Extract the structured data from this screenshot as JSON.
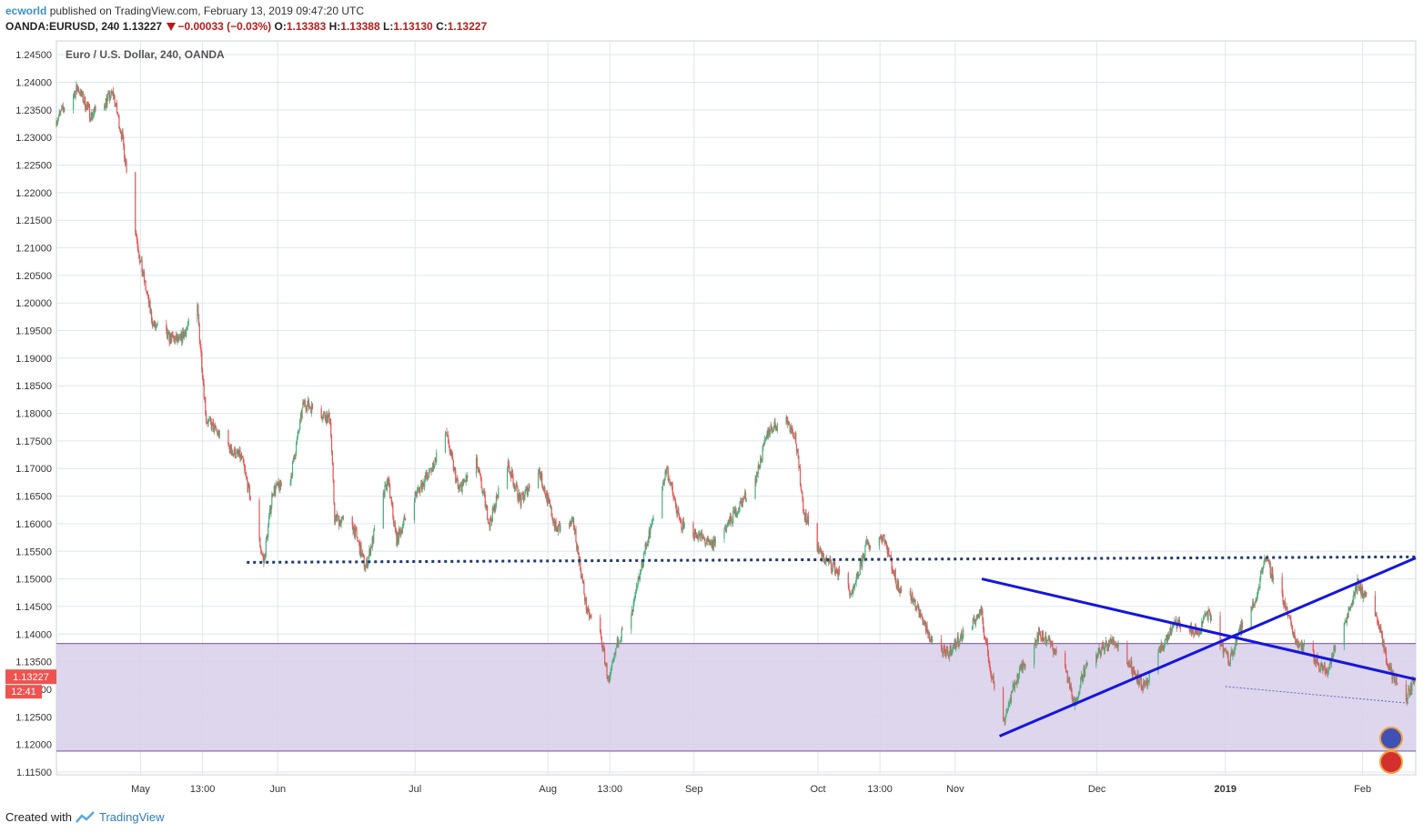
{
  "header": {
    "author": "ecworld",
    "published_text": "published on TradingView.com, February 13, 2019 09:47:20 UTC",
    "symbol": "OANDA:EURUSD, 240",
    "last": "1.13227",
    "change": "−0.00033 (−0.03%)",
    "o_label": "O:",
    "o_value": "1.13383",
    "h_label": "H:",
    "h_value": "1.13388",
    "l_label": "L:",
    "l_value": "1.13130",
    "c_label": "C:",
    "c_value": "1.13227"
  },
  "footer": {
    "created_with": "Created with",
    "brand": "TradingView"
  },
  "colors": {
    "up": "#4caf7d",
    "down": "#e05858",
    "trendline": "#1515e0",
    "support_dotted": "#1f3a6e",
    "zone_fill": "#d9d2ea",
    "zone_border": "#8e6bb8",
    "price_tag": "#ef5350",
    "grid": "#dde6ef"
  },
  "chart_data": {
    "type": "candlestick",
    "title": "Euro / U.S. Dollar, 240, OANDA",
    "y_range": [
      1.1145,
      1.2475
    ],
    "y_ticks": [
      "1.24500",
      "1.24000",
      "1.23500",
      "1.23000",
      "1.22500",
      "1.22000",
      "1.21500",
      "1.21000",
      "1.20500",
      "1.20000",
      "1.19500",
      "1.19000",
      "1.18500",
      "1.18000",
      "1.17500",
      "1.17000",
      "1.16500",
      "1.16000",
      "1.15500",
      "1.15000",
      "1.14500",
      "1.14000",
      "1.13500",
      "1.13000",
      "1.12500",
      "1.12000",
      "1.11500"
    ],
    "x_ticks": [
      "May",
      "13:00",
      "Jun",
      "Jul",
      "Aug",
      "13:00",
      "Sep",
      "Oct",
      "13:00",
      "Nov",
      "Dec",
      "2019",
      "Feb"
    ],
    "x_range": [
      "2018-04-12",
      "2019-02-13"
    ],
    "last_price_tag": "1.13227",
    "countdown_tag": "12:41",
    "price_path": [
      [
        "2018-04-12",
        1.233
      ],
      [
        "2018-04-17",
        1.239
      ],
      [
        "2018-04-20",
        1.234
      ],
      [
        "2018-04-25",
        1.238
      ],
      [
        "2018-04-27",
        1.23
      ],
      [
        "2018-05-01",
        1.208
      ],
      [
        "2018-05-04",
        1.196
      ],
      [
        "2018-05-07",
        1.194
      ],
      [
        "2018-05-10",
        1.193
      ],
      [
        "2018-05-14",
        1.199
      ],
      [
        "2018-05-16",
        1.179
      ],
      [
        "2018-05-18",
        1.177
      ],
      [
        "2018-05-22",
        1.173
      ],
      [
        "2018-05-24",
        1.172
      ],
      [
        "2018-05-29",
        1.153
      ],
      [
        "2018-05-31",
        1.166
      ],
      [
        "2018-06-04",
        1.168
      ],
      [
        "2018-06-07",
        1.182
      ],
      [
        "2018-06-13",
        1.179
      ],
      [
        "2018-06-14",
        1.161
      ],
      [
        "2018-06-18",
        1.16
      ],
      [
        "2018-06-21",
        1.152
      ],
      [
        "2018-06-26",
        1.168
      ],
      [
        "2018-06-28",
        1.157
      ],
      [
        "2018-07-02",
        1.165
      ],
      [
        "2018-07-06",
        1.17
      ],
      [
        "2018-07-09",
        1.177
      ],
      [
        "2018-07-12",
        1.166
      ],
      [
        "2018-07-16",
        1.171
      ],
      [
        "2018-07-19",
        1.16
      ],
      [
        "2018-07-23",
        1.171
      ],
      [
        "2018-07-26",
        1.164
      ],
      [
        "2018-07-30",
        1.17
      ],
      [
        "2018-08-03",
        1.159
      ],
      [
        "2018-08-07",
        1.16
      ],
      [
        "2018-08-10",
        1.144
      ],
      [
        "2018-08-13",
        1.14
      ],
      [
        "2018-08-15",
        1.131
      ],
      [
        "2018-08-17",
        1.139
      ],
      [
        "2018-08-20",
        1.143
      ],
      [
        "2018-08-23",
        1.155
      ],
      [
        "2018-08-28",
        1.17
      ],
      [
        "2018-08-31",
        1.16
      ],
      [
        "2018-09-04",
        1.158
      ],
      [
        "2018-09-07",
        1.156
      ],
      [
        "2018-09-11",
        1.16
      ],
      [
        "2018-09-14",
        1.164
      ],
      [
        "2018-09-17",
        1.168
      ],
      [
        "2018-09-20",
        1.177
      ],
      [
        "2018-09-24",
        1.179
      ],
      [
        "2018-09-26",
        1.176
      ],
      [
        "2018-09-28",
        1.162
      ],
      [
        "2018-10-02",
        1.154
      ],
      [
        "2018-10-05",
        1.152
      ],
      [
        "2018-10-09",
        1.147
      ],
      [
        "2018-10-12",
        1.156
      ],
      [
        "2018-10-16",
        1.158
      ],
      [
        "2018-10-19",
        1.149
      ],
      [
        "2018-10-23",
        1.146
      ],
      [
        "2018-10-26",
        1.14
      ],
      [
        "2018-10-30",
        1.136
      ],
      [
        "2018-11-02",
        1.139
      ],
      [
        "2018-11-07",
        1.144
      ],
      [
        "2018-11-09",
        1.134
      ],
      [
        "2018-11-12",
        1.124
      ],
      [
        "2018-11-15",
        1.132
      ],
      [
        "2018-11-20",
        1.14
      ],
      [
        "2018-11-22",
        1.139
      ],
      [
        "2018-11-26",
        1.134
      ],
      [
        "2018-11-28",
        1.127
      ],
      [
        "2018-11-30",
        1.133
      ],
      [
        "2018-12-04",
        1.137
      ],
      [
        "2018-12-07",
        1.139
      ],
      [
        "2018-12-11",
        1.134
      ],
      [
        "2018-12-14",
        1.13
      ],
      [
        "2018-12-18",
        1.138
      ],
      [
        "2018-12-21",
        1.142
      ],
      [
        "2018-12-26",
        1.14
      ],
      [
        "2018-12-28",
        1.144
      ],
      [
        "2019-01-02",
        1.135
      ],
      [
        "2019-01-04",
        1.14
      ],
      [
        "2019-01-08",
        1.146
      ],
      [
        "2019-01-10",
        1.154
      ],
      [
        "2019-01-14",
        1.147
      ],
      [
        "2019-01-17",
        1.139
      ],
      [
        "2019-01-21",
        1.136
      ],
      [
        "2019-01-24",
        1.133
      ],
      [
        "2019-01-28",
        1.142
      ],
      [
        "2019-01-31",
        1.149
      ],
      [
        "2019-02-04",
        1.144
      ],
      [
        "2019-02-07",
        1.134
      ],
      [
        "2019-02-11",
        1.128
      ],
      [
        "2019-02-13",
        1.1323
      ]
    ],
    "drawings": [
      {
        "type": "dotted_horizontal",
        "from": [
          "2018-05-25",
          1.153
        ],
        "to": [
          "2019-02-13",
          1.154
        ]
      },
      {
        "type": "rectangle_zone",
        "from": [
          "2018-04-12",
          1.1383
        ],
        "to": [
          "2019-02-13",
          1.1188
        ]
      },
      {
        "type": "trendline",
        "from": [
          "2018-11-07",
          1.15
        ],
        "to": [
          "2019-02-13",
          1.1318
        ]
      },
      {
        "type": "trendline",
        "from": [
          "2018-11-11",
          1.1215
        ],
        "to": [
          "2019-02-13",
          1.1538
        ]
      },
      {
        "type": "thin_dotted",
        "from": [
          "2019-01-01",
          1.1305
        ],
        "to": [
          "2019-02-11",
          1.1275
        ]
      }
    ],
    "grid": true
  }
}
